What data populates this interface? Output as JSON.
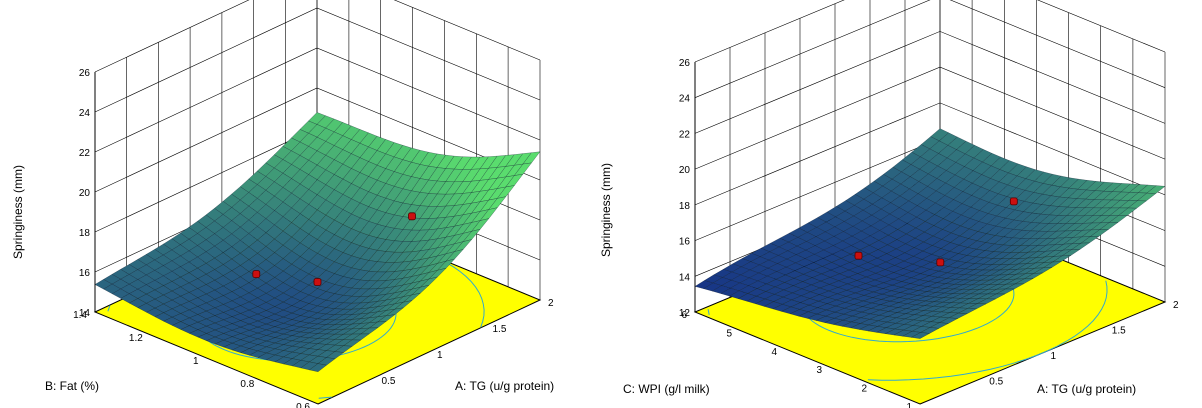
{
  "chart_data": [
    {
      "type": "surface3d",
      "zlabel": "Springiness (mm)",
      "xlabel": "A: TG (u/g protein)",
      "ylabel": "B: Fat (%)",
      "z_ticks": [
        "14",
        "16",
        "18",
        "20",
        "22",
        "24",
        "26"
      ],
      "x_ticks": [
        "0.5",
        "1",
        "1.5",
        "2"
      ],
      "y_ticks": [
        "0.6",
        "0.8",
        "1",
        "1.2",
        "1.4"
      ],
      "zlim": [
        14,
        26
      ],
      "xlim": [
        0,
        2
      ],
      "ylim": [
        0.6,
        1.4
      ],
      "surface_corners": [
        {
          "x": 0,
          "y": 1.4,
          "z": 15.9
        },
        {
          "x": 2,
          "y": 1.4,
          "z": 19.5
        },
        {
          "x": 2,
          "y": 0.6,
          "z": 22.5
        },
        {
          "x": 0,
          "y": 0.6,
          "z": 16.2
        }
      ],
      "surface_minimum": {
        "x": 0.8,
        "y": 1.0,
        "z": 13.5
      },
      "design_points": [
        {
          "x": 0.7,
          "y": 1.1,
          "z": 15.8
        },
        {
          "x": 1.0,
          "y": 1.0,
          "z": 15.2
        },
        {
          "x": 1.6,
          "y": 0.9,
          "z": 17.5
        }
      ],
      "grid": true,
      "floor_color": "#ffff00",
      "contour_color": "#33aacc"
    },
    {
      "type": "surface3d",
      "zlabel": "Springiness (mm)",
      "xlabel": "A: TG (u/g protein)",
      "ylabel": "C: WPI (g/l milk)",
      "z_ticks": [
        "12",
        "14",
        "16",
        "18",
        "20",
        "22",
        "24",
        "26"
      ],
      "x_ticks": [
        "0.5",
        "1",
        "1.5",
        "2"
      ],
      "y_ticks": [
        "1",
        "2",
        "3",
        "4",
        "5",
        "6"
      ],
      "zlim": [
        12,
        26
      ],
      "xlim": [
        0,
        2
      ],
      "ylim": [
        1,
        6
      ],
      "surface_corners": [
        {
          "x": 0,
          "y": 6,
          "z": 13.5
        },
        {
          "x": 2,
          "y": 6,
          "z": 17.5
        },
        {
          "x": 2,
          "y": 1,
          "z": 19.2
        },
        {
          "x": 0,
          "y": 1,
          "z": 16.0
        }
      ],
      "surface_minimum": {
        "x": 1.0,
        "y": 4,
        "z": 13.2
      },
      "design_points": [
        {
          "x": 0.6,
          "y": 4,
          "z": 15.5
        },
        {
          "x": 0.9,
          "y": 3,
          "z": 15.3
        },
        {
          "x": 1.5,
          "y": 3,
          "z": 17.0
        }
      ],
      "grid": true,
      "floor_color": "#ffff00",
      "contour_color": "#33aacc"
    }
  ]
}
